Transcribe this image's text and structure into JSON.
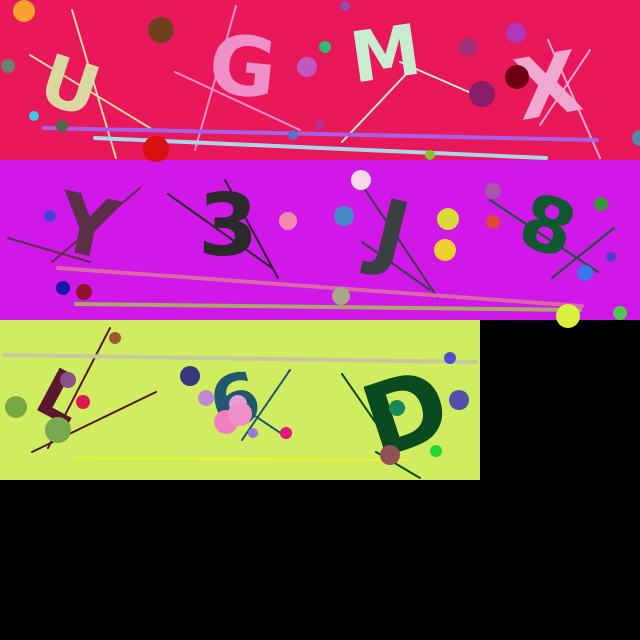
{
  "background": "#000000",
  "rows": [
    {
      "name": "row-1",
      "color": "#E8185A",
      "glyphs": [
        {
          "text": "U",
          "color": "#D8D8A0"
        },
        {
          "text": "G",
          "color": "#F090C8"
        },
        {
          "text": "M",
          "color": "#C8ECD0"
        },
        {
          "text": "X",
          "color": "#F0A8D0"
        }
      ]
    },
    {
      "name": "row-2",
      "color": "#D018E8",
      "glyphs": [
        {
          "text": "Y",
          "color": "#5A3048"
        },
        {
          "text": "3",
          "color": "#2A2A2A"
        },
        {
          "text": "J",
          "color": "#3A4040"
        },
        {
          "text": "8",
          "color": "#105830"
        }
      ]
    },
    {
      "name": "row-3",
      "color": "#D0EC60",
      "glyphs": [
        {
          "text": "L",
          "color": "#5A1830"
        },
        {
          "text": "6",
          "color": "#205870"
        },
        {
          "text": "D",
          "color": "#0A4A20"
        }
      ]
    }
  ]
}
